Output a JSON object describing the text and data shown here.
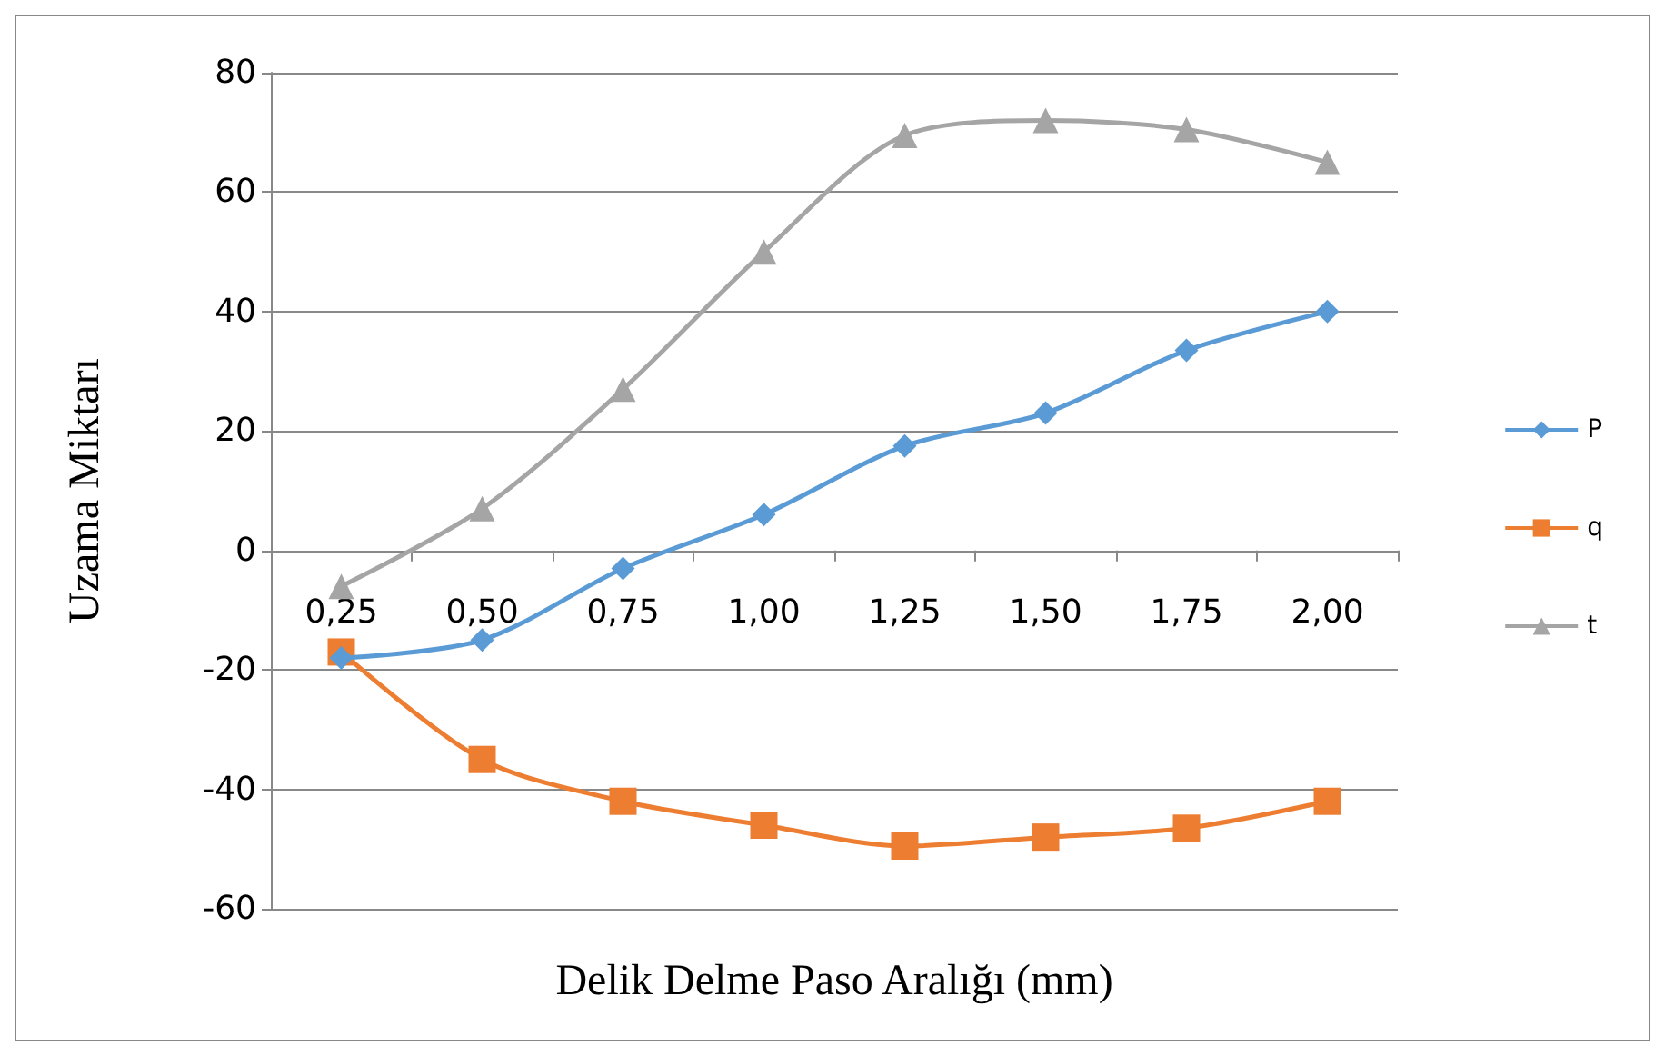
{
  "chart_data": {
    "type": "line",
    "xlabel": "Delik Delme Paso Aralığı (mm)",
    "ylabel": "Uzama Miktarı",
    "categories": [
      "0,25",
      "0,50",
      "0,75",
      "1,00",
      "1,25",
      "1,50",
      "1,75",
      "2,00"
    ],
    "series": [
      {
        "name": "P",
        "color": "#5b9bd5",
        "marker": "diamond",
        "values": [
          -18,
          -15,
          -3,
          6,
          17.5,
          23,
          33.5,
          40
        ]
      },
      {
        "name": "q",
        "color": "#ed7d31",
        "marker": "square",
        "values": [
          -17,
          -35,
          -42,
          -46,
          -49.5,
          -48,
          -46.5,
          -42
        ]
      },
      {
        "name": "t",
        "color": "#a5a5a5",
        "marker": "triangle",
        "values": [
          -6,
          7,
          27,
          50,
          69.5,
          72,
          70.5,
          65
        ]
      }
    ],
    "ylim": [
      -60,
      80
    ],
    "yticks": [
      -60,
      -40,
      -20,
      0,
      20,
      40,
      60,
      80
    ],
    "grid": "y",
    "legend": "right",
    "line_style": "solid"
  }
}
